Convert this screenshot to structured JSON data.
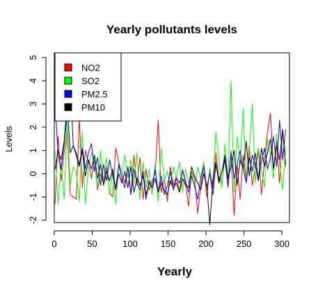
{
  "chart_data": {
    "type": "line",
    "title": "Yearly pollutants levels",
    "xlabel": "Yearly",
    "ylabel": "Levels",
    "xlim": [
      0,
      310
    ],
    "ylim": [
      -2.1,
      5.2
    ],
    "xticks": [
      0,
      50,
      100,
      150,
      200,
      250,
      300
    ],
    "yticks": [
      -2,
      -1,
      0,
      1,
      2,
      3,
      4,
      5
    ],
    "legend_position": "top-left",
    "grid": false,
    "series": [
      {
        "name": "NO2",
        "color": "#ff0000",
        "x": [
          1,
          5,
          9,
          13,
          17,
          21,
          25,
          29,
          33,
          37,
          41,
          45,
          49,
          53,
          57,
          61,
          65,
          69,
          73,
          77,
          81,
          85,
          89,
          93,
          97,
          101,
          105,
          109,
          113,
          117,
          121,
          125,
          129,
          133,
          137,
          141,
          145,
          149,
          153,
          157,
          161,
          165,
          169,
          173,
          177,
          181,
          185,
          189,
          193,
          197,
          201,
          205,
          209,
          213,
          217,
          221,
          225,
          229,
          233,
          237,
          241,
          245,
          249,
          253,
          257,
          261,
          265,
          269,
          273,
          277,
          281,
          285,
          289,
          293,
          297,
          301,
          305
        ],
        "y": [
          -1.3,
          1.6,
          -0.3,
          0.9,
          1.8,
          -0.9,
          -1.0,
          -1.1,
          2.4,
          -0.6,
          1.0,
          0.5,
          -0.2,
          0.6,
          -0.7,
          0.0,
          -0.4,
          0.3,
          -0.8,
          -1.0,
          1.1,
          0.5,
          0.0,
          -0.4,
          0.3,
          -0.9,
          0.8,
          -0.5,
          0.7,
          -1.1,
          0.2,
          -0.7,
          -0.3,
          0.0,
          2.3,
          -0.8,
          -0.2,
          -1.2,
          0.3,
          -0.5,
          -0.1,
          -0.8,
          0.2,
          -0.4,
          -1.4,
          0.1,
          -0.2,
          -1.7,
          -0.6,
          0.4,
          -1.0,
          0.2,
          -0.6,
          0.9,
          -0.2,
          -0.4,
          0.7,
          -0.6,
          1.0,
          -1.8,
          0.4,
          -1.1,
          0.8,
          -0.3,
          1.2,
          -0.5,
          0.3,
          1.1,
          -0.9,
          0.5,
          1.8,
          2.6,
          0.2,
          1.4,
          -0.4,
          1.9,
          0.3
        ]
      },
      {
        "name": "SO2",
        "color": "#00ff00",
        "x": [
          1,
          5,
          9,
          13,
          17,
          21,
          25,
          29,
          33,
          37,
          41,
          45,
          49,
          53,
          57,
          61,
          65,
          69,
          73,
          77,
          81,
          85,
          89,
          93,
          97,
          101,
          105,
          109,
          113,
          117,
          121,
          125,
          129,
          133,
          137,
          141,
          145,
          149,
          153,
          157,
          161,
          165,
          169,
          173,
          177,
          181,
          185,
          189,
          193,
          197,
          201,
          205,
          209,
          213,
          217,
          221,
          225,
          229,
          233,
          237,
          241,
          245,
          249,
          253,
          257,
          261,
          265,
          269,
          273,
          277,
          281,
          285,
          289,
          293,
          297,
          301,
          305
        ],
        "y": [
          1.0,
          -1.3,
          0.5,
          -1.1,
          2.2,
          -0.5,
          0.3,
          0.1,
          -1.2,
          1.8,
          -1.3,
          0.2,
          0.9,
          0.6,
          -0.6,
          1.0,
          -0.3,
          0.7,
          -0.9,
          0.1,
          -1.3,
          0.4,
          0.0,
          0.8,
          -0.2,
          0.6,
          -0.4,
          0.9,
          -1.1,
          0.5,
          -0.6,
          0.2,
          -0.9,
          0.4,
          -1.2,
          1.1,
          -0.3,
          0.1,
          -0.5,
          0.3,
          -0.2,
          0.5,
          -0.8,
          0.2,
          -0.4,
          0.0,
          -0.6,
          0.3,
          -0.2,
          0.5,
          -0.7,
          0.1,
          -0.4,
          1.8,
          0.6,
          -0.6,
          1.3,
          -0.3,
          4.0,
          -0.8,
          1.6,
          0.4,
          2.8,
          -0.2,
          0.9,
          3.0,
          -0.4,
          1.1,
          0.2,
          -0.6,
          1.5,
          0.8,
          -0.2,
          1.7,
          0.4,
          -0.7,
          1.2
        ]
      },
      {
        "name": "PM2.5",
        "color": "#0000ff",
        "x": [
          1,
          5,
          9,
          13,
          17,
          21,
          25,
          29,
          33,
          37,
          41,
          45,
          49,
          53,
          57,
          61,
          65,
          69,
          73,
          77,
          81,
          85,
          89,
          93,
          97,
          101,
          105,
          109,
          113,
          117,
          121,
          125,
          129,
          133,
          137,
          141,
          145,
          149,
          153,
          157,
          161,
          165,
          169,
          173,
          177,
          181,
          185,
          189,
          193,
          197,
          201,
          205,
          209,
          213,
          217,
          221,
          225,
          229,
          233,
          237,
          241,
          245,
          249,
          253,
          257,
          261,
          265,
          269,
          273,
          277,
          281,
          285,
          289,
          293,
          297,
          301,
          305
        ],
        "y": [
          3.1,
          0.8,
          0.2,
          1.3,
          2.5,
          4.2,
          1.2,
          0.9,
          0.4,
          1.1,
          0.2,
          0.9,
          1.3,
          0.1,
          0.7,
          -0.5,
          0.4,
          -0.3,
          0.6,
          -0.1,
          -0.6,
          0.4,
          -0.2,
          -0.6,
          0.3,
          -0.9,
          0.2,
          -0.4,
          -0.7,
          0.1,
          -1.1,
          -0.3,
          -0.6,
          0.2,
          -0.8,
          -0.1,
          -0.9,
          -0.5,
          0.1,
          -0.7,
          -0.2,
          -0.4,
          0.1,
          -0.3,
          -0.8,
          -0.1,
          -0.5,
          -1.1,
          -0.2,
          0.3,
          -0.6,
          0.0,
          -0.9,
          0.4,
          -0.3,
          0.1,
          0.6,
          -0.5,
          0.9,
          -0.2,
          0.4,
          1.0,
          0.2,
          -0.4,
          0.7,
          0.1,
          0.9,
          -0.3,
          0.5,
          1.1,
          0.2,
          0.7,
          1.6,
          0.3,
          2.3,
          0.6,
          1.9
        ]
      },
      {
        "name": "PM10",
        "color": "#000000",
        "x": [
          1,
          5,
          9,
          13,
          17,
          21,
          25,
          29,
          33,
          37,
          41,
          45,
          49,
          53,
          57,
          61,
          65,
          69,
          73,
          77,
          81,
          85,
          89,
          93,
          97,
          101,
          105,
          109,
          113,
          117,
          121,
          125,
          129,
          133,
          137,
          141,
          145,
          149,
          153,
          157,
          161,
          165,
          169,
          173,
          177,
          181,
          185,
          189,
          193,
          197,
          201,
          205,
          209,
          213,
          217,
          221,
          225,
          229,
          233,
          237,
          241,
          245,
          249,
          253,
          257,
          261,
          265,
          269,
          273,
          277,
          281,
          285,
          289,
          293,
          297,
          301,
          305
        ],
        "y": [
          0.2,
          1.0,
          0.6,
          1.4,
          3.0,
          0.9,
          1.2,
          0.8,
          0.3,
          1.0,
          -0.1,
          0.6,
          0.2,
          0.8,
          -0.2,
          0.4,
          -0.5,
          0.1,
          -0.3,
          0.2,
          -0.7,
          0.0,
          -0.4,
          0.1,
          -0.6,
          0.3,
          -0.8,
          -0.2,
          -0.5,
          -0.1,
          -0.9,
          -0.4,
          -0.6,
          -0.2,
          -0.8,
          -0.4,
          -0.7,
          -0.9,
          -0.3,
          -0.6,
          -0.4,
          -0.8,
          -0.2,
          -0.5,
          -0.6,
          0.3,
          -0.1,
          -0.4,
          -0.7,
          0.0,
          -0.5,
          -2.2,
          -0.3,
          0.5,
          -0.4,
          0.1,
          0.8,
          -0.2,
          0.3,
          1.0,
          -0.5,
          0.6,
          0.2,
          1.4,
          -0.1,
          0.8,
          0.4,
          -0.3,
          1.1,
          0.3,
          0.9,
          1.5,
          0.2,
          1.2,
          0.6,
          1.9,
          0.4
        ]
      }
    ]
  }
}
